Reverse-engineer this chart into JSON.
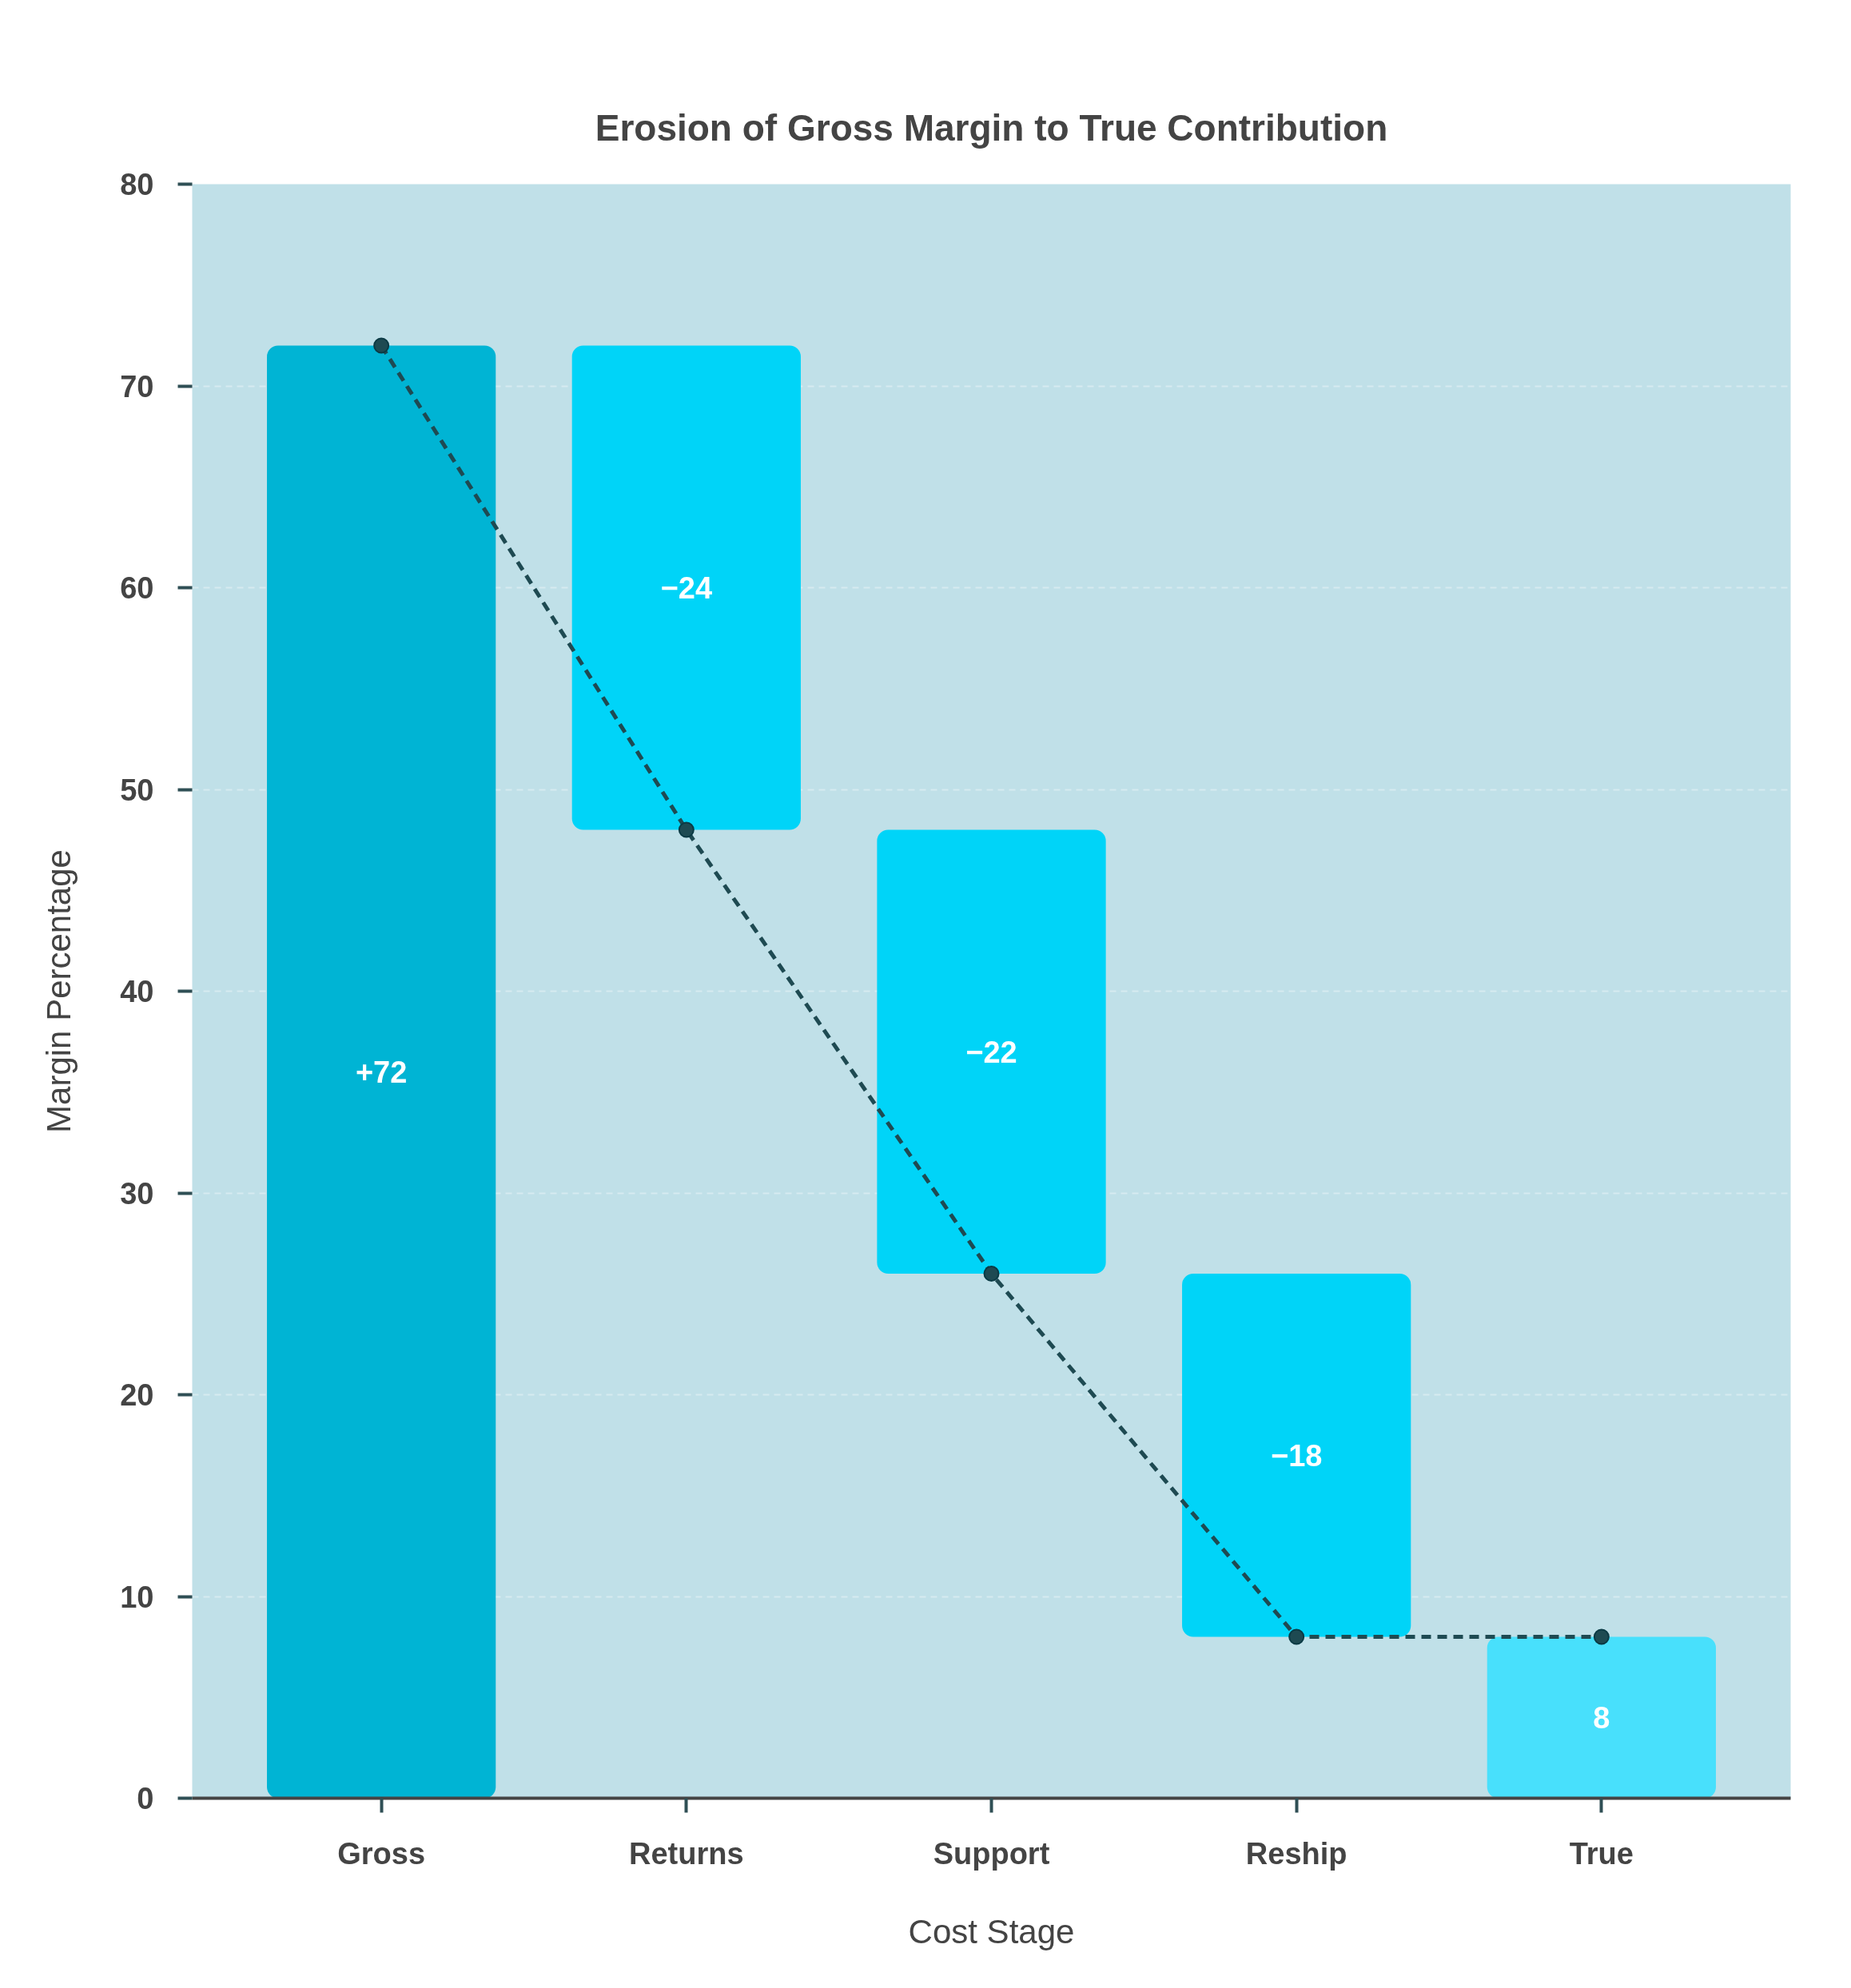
{
  "chart_data": {
    "type": "bar",
    "title": "Erosion of Gross Margin to True Contribution",
    "xlabel": "Cost Stage",
    "ylabel": "Margin Percentage",
    "categories": [
      "Gross",
      "Returns",
      "Support",
      "Reship",
      "True"
    ],
    "series": [
      {
        "values": [
          72,
          -24,
          -22,
          -18,
          8
        ],
        "base": [
          0,
          72,
          48,
          26,
          0
        ],
        "colors": [
          "#00b4d4",
          "#00d4f8",
          "#00d4f8",
          "#00d4f8",
          "#48e0fc"
        ],
        "value_labels": [
          "+72",
          "−24",
          "−22",
          "−18",
          "8"
        ]
      },
      {
        "type": "line",
        "color": "#1e4a52",
        "values": [
          72,
          48,
          26,
          8,
          8
        ],
        "line_style": "dashed",
        "marker": "circle"
      }
    ],
    "ylim": [
      0,
      80
    ],
    "yticks": [
      0,
      10,
      20,
      30,
      40,
      50,
      60,
      70,
      80
    ],
    "grid": "y"
  }
}
